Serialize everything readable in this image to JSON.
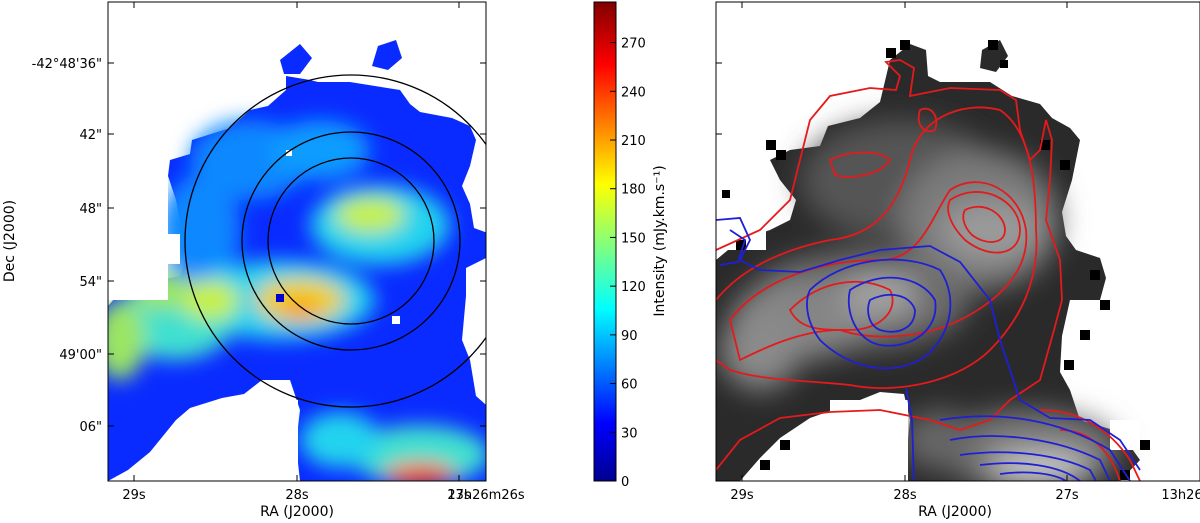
{
  "chart_data": [
    {
      "type": "heatmap",
      "panel": "left",
      "title": "",
      "xlabel": "RA (J2000)",
      "ylabel": "Dec (J2000)",
      "x_ticks": [
        "29s",
        "28s",
        "27s",
        "13h26m26s"
      ],
      "y_ticks": [
        "-42°48'36\"",
        "42\"",
        "48\"",
        "54\"",
        "49'00\"",
        "06\""
      ],
      "colorbar": {
        "label": "Intensity (mJy.km.s⁻¹)",
        "colormap": "jet",
        "range": [
          0,
          295
        ],
        "ticks": [
          0,
          30,
          60,
          90,
          120,
          150,
          180,
          210,
          240,
          270
        ]
      },
      "overlays": [
        {
          "shape": "circle",
          "color": "#000000",
          "name": "outer"
        },
        {
          "shape": "circle",
          "color": "#000000",
          "name": "middle"
        },
        {
          "shape": "circle",
          "color": "#000000",
          "name": "inner"
        }
      ],
      "features": [
        {
          "region": "bright peak near bottom center",
          "approx_intensity": 280
        },
        {
          "region": "clump at center-left (~28s, 56\")",
          "approx_intensity": 200
        },
        {
          "region": "clump upper-right (~27.3s, 50\")",
          "approx_intensity": 180
        },
        {
          "region": "left edge blob (~29.2s, 59\")",
          "approx_intensity": 170
        }
      ]
    },
    {
      "type": "heatmap",
      "panel": "right",
      "title": "",
      "xlabel": "RA (J2000)",
      "ylabel": "",
      "x_ticks": [
        "29s",
        "28s",
        "27s",
        "13h26m26s"
      ],
      "colormap": "gray",
      "contours": [
        {
          "color": "#e41a1c",
          "levels": 5
        },
        {
          "color": "#1f1fd6",
          "levels": 6
        }
      ]
    }
  ],
  "colors": {
    "red_contour": "#e41a1c",
    "blue_contour": "#1f1fd6",
    "circle": "#000000"
  }
}
